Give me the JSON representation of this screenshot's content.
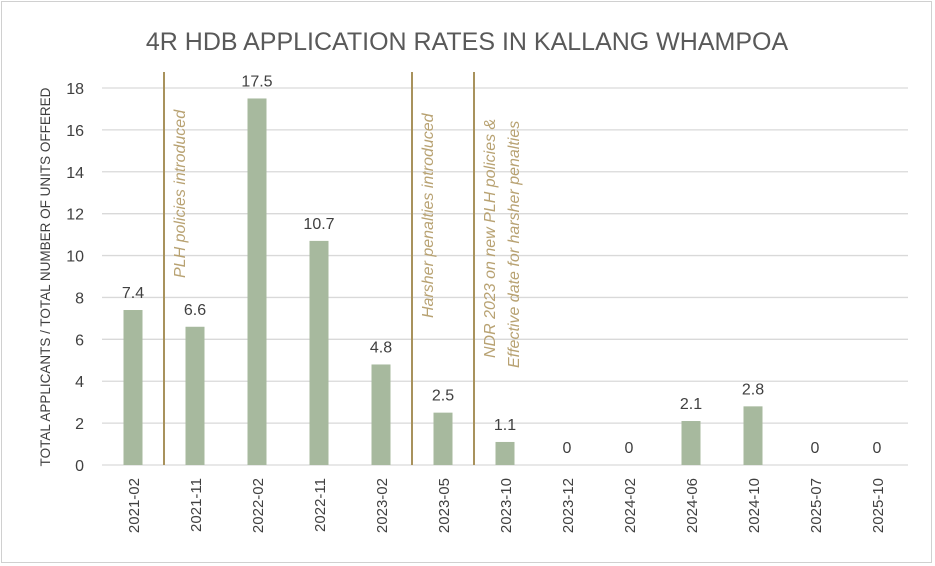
{
  "chart_data": {
    "type": "bar",
    "title": "4R HDB APPLICATION RATES IN KALLANG WHAMPOA",
    "xlabel": "",
    "ylabel": "TOTAL APPLICANTS / TOTAL NUMBER OF UNITS OFFERED",
    "categories": [
      "2021-02",
      "2021-11",
      "2022-02",
      "2022-11",
      "2023-02",
      "2023-05",
      "2023-10",
      "2023-12",
      "2024-02",
      "2024-06",
      "2024-10",
      "2025-07",
      "2025-10"
    ],
    "values": [
      7.4,
      6.6,
      17.5,
      10.7,
      4.8,
      2.5,
      1.1,
      0,
      0,
      2.1,
      2.8,
      0,
      0
    ],
    "data_labels": [
      "7.4",
      "6.6",
      "17.5",
      "10.7",
      "4.8",
      "2.5",
      "1.1",
      "0",
      "0",
      "2.1",
      "2.8",
      "0",
      "0"
    ],
    "ylim": [
      0,
      18
    ],
    "yticks": [
      0,
      2,
      4,
      6,
      8,
      10,
      12,
      14,
      16,
      18
    ],
    "grid": true,
    "colors": {
      "bar": "#a7b99e",
      "annotation_line": "#a8925c",
      "annotation_text": "#b8a272",
      "grid": "#d9d9d9",
      "text": "#404040"
    },
    "annotations": [
      {
        "after_category": "2021-02",
        "lines": [
          "PLH policies introduced"
        ]
      },
      {
        "after_category": "2023-02",
        "lines": [
          "Harsher penalties introduced"
        ]
      },
      {
        "after_category": "2023-05",
        "lines": [
          "NDR 2023 on new PLH policies &",
          "Effective date for harsher penalties"
        ]
      }
    ]
  }
}
